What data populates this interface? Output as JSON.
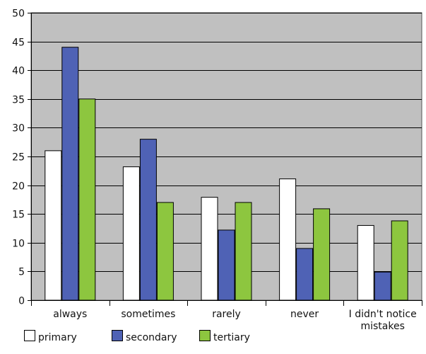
{
  "chart_data": {
    "type": "bar",
    "categories": [
      "always",
      "sometimes",
      "rarely",
      "never",
      "I didn't notice mistakes"
    ],
    "category_label_lines": [
      [
        "always"
      ],
      [
        "sometimes"
      ],
      [
        "rarely"
      ],
      [
        "never"
      ],
      [
        "I didn't notice",
        "mistakes"
      ]
    ],
    "series": [
      {
        "name": "primary",
        "values": [
          26,
          23.2,
          17.9,
          21.1,
          13
        ],
        "color": "#ffffff"
      },
      {
        "name": "secondary",
        "values": [
          44,
          28,
          12.2,
          9,
          4.9
        ],
        "color": "#4f62b5"
      },
      {
        "name": "tertiary",
        "values": [
          35,
          17,
          17,
          15.9,
          13.8
        ],
        "color": "#8dc63f"
      }
    ],
    "title": "",
    "xlabel": "",
    "ylabel": "",
    "ylim": [
      0,
      50
    ],
    "yticks": [
      0,
      5,
      10,
      15,
      20,
      25,
      30,
      35,
      40,
      45,
      50
    ],
    "grid": true,
    "legend_position": "bottom-left",
    "plot_background": "#c0c0c0",
    "grid_color": "#000000",
    "bar_outline": "#000000"
  }
}
